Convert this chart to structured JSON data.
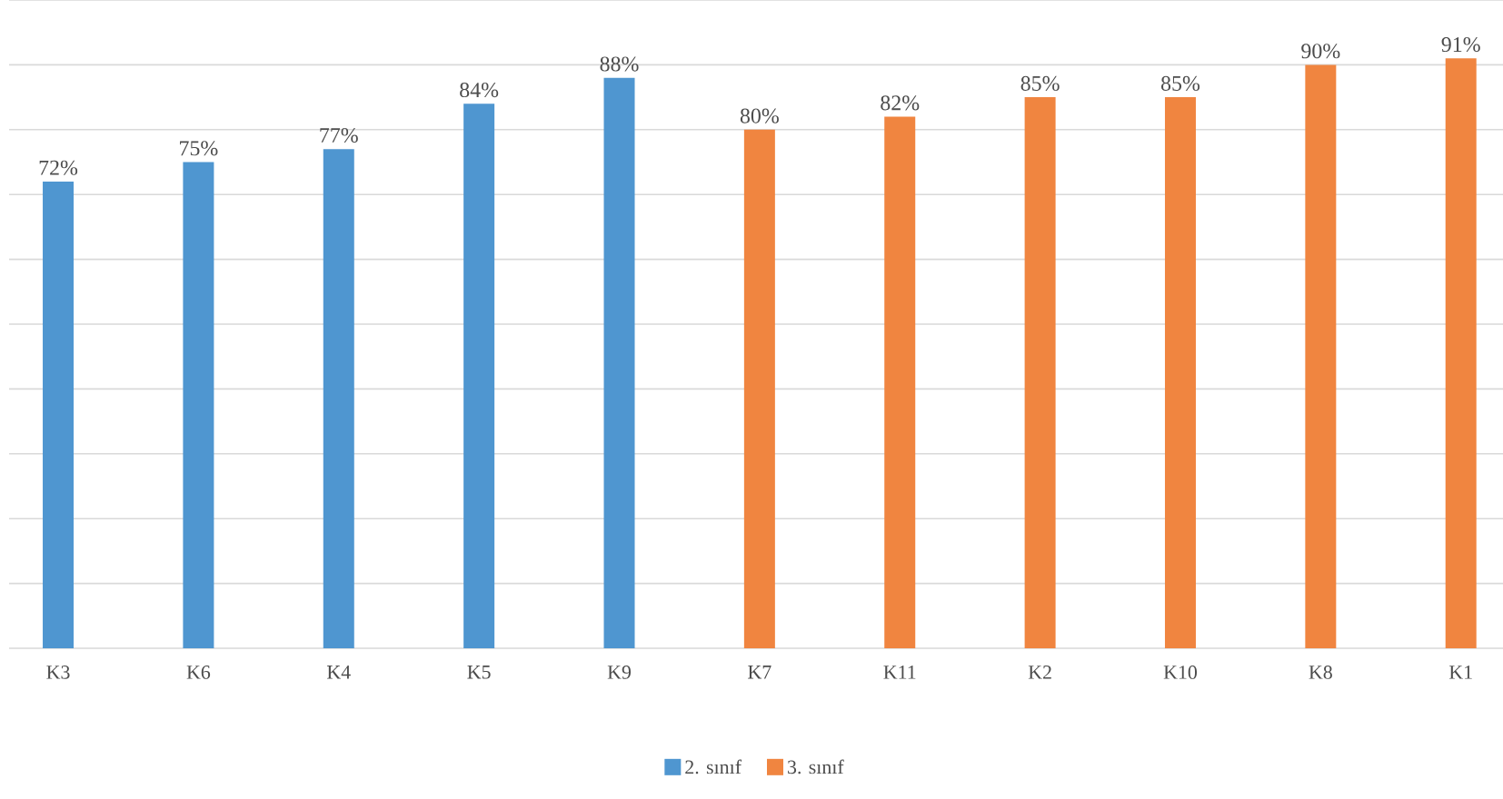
{
  "chart_data": {
    "type": "bar",
    "categories": [
      "K3",
      "K6",
      "K4",
      "K5",
      "K9",
      "K7",
      "K11",
      "K2",
      "K10",
      "K8",
      "K1"
    ],
    "series": [
      {
        "name": "2. sınıf",
        "color": "#4f96d0",
        "values": [
          72,
          75,
          77,
          84,
          88,
          null,
          null,
          null,
          null,
          null,
          null
        ],
        "value_labels": [
          "72%",
          "75%",
          "77%",
          "84%",
          "88%",
          null,
          null,
          null,
          null,
          null,
          null
        ]
      },
      {
        "name": "3. sınıf",
        "color": "#f08540",
        "values": [
          null,
          null,
          null,
          null,
          null,
          80,
          82,
          85,
          85,
          90,
          91
        ],
        "value_labels": [
          null,
          null,
          null,
          null,
          null,
          "80%",
          "82%",
          "85%",
          "85%",
          "90%",
          "91%"
        ]
      }
    ],
    "ylim": [
      0,
      100
    ],
    "yticks": [
      {
        "value": 0,
        "label": null
      },
      {
        "value": 10,
        "label": null
      },
      {
        "value": 20,
        "label": null
      },
      {
        "value": 30,
        "label": null
      },
      {
        "value": 40,
        "label": null
      },
      {
        "value": 50,
        "label": null
      },
      {
        "value": 60,
        "label": null
      },
      {
        "value": 70,
        "label": null
      },
      {
        "value": 80,
        "label": null
      },
      {
        "value": 90,
        "label": null
      },
      {
        "value": 100,
        "label": null
      }
    ],
    "grid": "y",
    "tick_labels": "x",
    "legend": "bottom"
  }
}
